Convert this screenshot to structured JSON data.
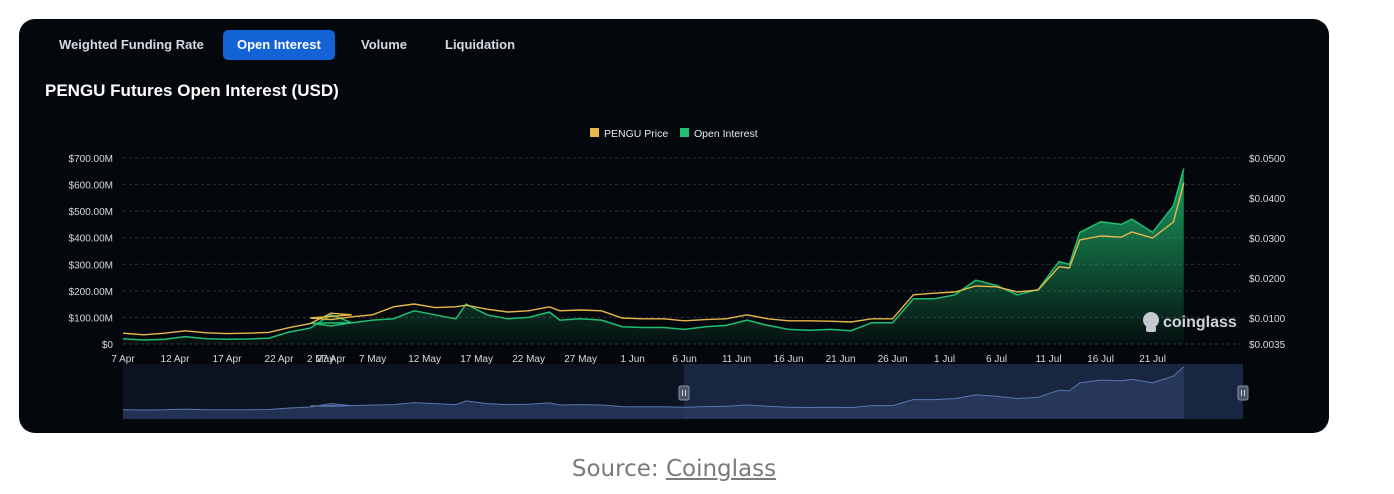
{
  "tabs": [
    {
      "label": "Weighted Funding Rate",
      "active": false
    },
    {
      "label": "Open Interest",
      "active": true
    },
    {
      "label": "Volume",
      "active": false
    },
    {
      "label": "Liquidation",
      "active": false
    }
  ],
  "title": "PENGU Futures Open Interest (USD)",
  "watermark": "coinglass",
  "caption": {
    "prefix": "Source: ",
    "link": "Coinglass"
  },
  "colors": {
    "background": "#04070b",
    "price": "#e9b84a",
    "open_interest": "#1fbf73",
    "active_tab": "#1463d6",
    "navigator": "#1b2a45"
  },
  "chart_data": {
    "type": "area",
    "legend": [
      "PENGU Price",
      "Open Interest"
    ],
    "legend_position": "top-center",
    "grid": true,
    "x_ticks": [
      "7 Apr",
      "12 Apr",
      "17 Apr",
      "22 Apr",
      "27 Apr",
      "2 May",
      "7 May",
      "12 May",
      "17 May",
      "22 May",
      "27 May",
      "1 Jun",
      "6 Jun",
      "11 Jun",
      "16 Jun",
      "21 Jun",
      "26 Jun",
      "1 Jul",
      "6 Jul",
      "11 Jul",
      "16 Jul",
      "21 Jul"
    ],
    "y_left": {
      "ticks": [
        "$0",
        "$100.00M",
        "$200.00M",
        "$300.00M",
        "$400.00M",
        "$500.00M",
        "$600.00M",
        "$700.00M"
      ],
      "range": [
        0,
        700
      ]
    },
    "y_right": {
      "ticks": [
        "$0.0035",
        "$0.0100",
        "$0.0200",
        "$0.0300",
        "$0.0400",
        "$0.0500"
      ]
    },
    "series": [
      {
        "name": "Open Interest",
        "unit": "USD millions",
        "points": [
          [
            "7 Apr",
            20
          ],
          [
            "9 Apr",
            15
          ],
          [
            "11 Apr",
            18
          ],
          [
            "13 Apr",
            28
          ],
          [
            "15 Apr",
            20
          ],
          [
            "17 Apr",
            18
          ],
          [
            "19 Apr",
            19
          ],
          [
            "21 Apr",
            22
          ],
          [
            "23 Apr",
            45
          ],
          [
            "25 Apr",
            60
          ],
          [
            "27 Apr",
            110
          ],
          [
            "29 Apr",
            80
          ],
          [
            "1 May",
            78
          ],
          [
            "3 May",
            68
          ],
          [
            "5 May",
            80
          ],
          [
            "7 May",
            90
          ],
          [
            "9 May",
            95
          ],
          [
            "11 May",
            125
          ],
          [
            "13 May",
            110
          ],
          [
            "15 May",
            95
          ],
          [
            "16 May",
            150
          ],
          [
            "18 May",
            110
          ],
          [
            "20 May",
            95
          ],
          [
            "22 May",
            100
          ],
          [
            "24 May",
            120
          ],
          [
            "25 May",
            90
          ],
          [
            "27 May",
            95
          ],
          [
            "29 May",
            90
          ],
          [
            "31 May",
            65
          ],
          [
            "2 Jun",
            62
          ],
          [
            "4 Jun",
            62
          ],
          [
            "6 Jun",
            55
          ],
          [
            "8 Jun",
            65
          ],
          [
            "10 Jun",
            70
          ],
          [
            "12 Jun",
            90
          ],
          [
            "14 Jun",
            70
          ],
          [
            "16 Jun",
            55
          ],
          [
            "18 Jun",
            52
          ],
          [
            "20 Jun",
            55
          ],
          [
            "22 Jun",
            50
          ],
          [
            "24 Jun",
            80
          ],
          [
            "26 Jun",
            80
          ],
          [
            "28 Jun",
            170
          ],
          [
            "30 Jun",
            170
          ],
          [
            "2 Jul",
            185
          ],
          [
            "4 Jul",
            240
          ],
          [
            "6 Jul",
            220
          ],
          [
            "8 Jul",
            185
          ],
          [
            "10 Jul",
            205
          ],
          [
            "12 Jul",
            310
          ],
          [
            "13 Jul",
            300
          ],
          [
            "14 Jul",
            420
          ],
          [
            "16 Jul",
            460
          ],
          [
            "18 Jul",
            450
          ],
          [
            "19 Jul",
            470
          ],
          [
            "21 Jul",
            420
          ],
          [
            "23 Jul",
            520
          ],
          [
            "24 Jul",
            660
          ]
        ]
      },
      {
        "name": "PENGU Price",
        "unit": "USD",
        "points": [
          [
            "7 Apr",
            0.0062
          ],
          [
            "9 Apr",
            0.0058
          ],
          [
            "11 Apr",
            0.0062
          ],
          [
            "13 Apr",
            0.0068
          ],
          [
            "15 Apr",
            0.0063
          ],
          [
            "17 Apr",
            0.0061
          ],
          [
            "19 Apr",
            0.0062
          ],
          [
            "21 Apr",
            0.0064
          ],
          [
            "23 Apr",
            0.0076
          ],
          [
            "25 Apr",
            0.0086
          ],
          [
            "27 Apr",
            0.0112
          ],
          [
            "29 Apr",
            0.0108
          ],
          [
            "1 May",
            0.01
          ],
          [
            "3 May",
            0.0096
          ],
          [
            "5 May",
            0.0103
          ],
          [
            "7 May",
            0.0108
          ],
          [
            "9 May",
            0.0128
          ],
          [
            "11 May",
            0.0135
          ],
          [
            "13 May",
            0.0126
          ],
          [
            "15 May",
            0.0128
          ],
          [
            "16 May",
            0.0132
          ],
          [
            "18 May",
            0.0122
          ],
          [
            "20 May",
            0.0115
          ],
          [
            "22 May",
            0.0118
          ],
          [
            "24 May",
            0.0128
          ],
          [
            "25 May",
            0.0118
          ],
          [
            "27 May",
            0.012
          ],
          [
            "29 May",
            0.0118
          ],
          [
            "31 May",
            0.01
          ],
          [
            "2 Jun",
            0.0098
          ],
          [
            "4 Jun",
            0.0098
          ],
          [
            "6 Jun",
            0.0093
          ],
          [
            "8 Jun",
            0.0096
          ],
          [
            "10 Jun",
            0.0098
          ],
          [
            "12 Jun",
            0.0108
          ],
          [
            "14 Jun",
            0.0098
          ],
          [
            "16 Jun",
            0.0093
          ],
          [
            "18 Jun",
            0.0093
          ],
          [
            "20 Jun",
            0.0092
          ],
          [
            "22 Jun",
            0.009
          ],
          [
            "24 Jun",
            0.0098
          ],
          [
            "26 Jun",
            0.0098
          ],
          [
            "28 Jun",
            0.0158
          ],
          [
            "30 Jun",
            0.0162
          ],
          [
            "2 Jul",
            0.0165
          ],
          [
            "4 Jul",
            0.018
          ],
          [
            "6 Jul",
            0.0178
          ],
          [
            "8 Jul",
            0.0165
          ],
          [
            "10 Jul",
            0.017
          ],
          [
            "12 Jul",
            0.0228
          ],
          [
            "13 Jul",
            0.0225
          ],
          [
            "14 Jul",
            0.0295
          ],
          [
            "16 Jul",
            0.0305
          ],
          [
            "18 Jul",
            0.0302
          ],
          [
            "19 Jul",
            0.0315
          ],
          [
            "21 Jul",
            0.03
          ],
          [
            "23 Jul",
            0.034
          ],
          [
            "24 Jul",
            0.0438
          ]
        ]
      }
    ]
  }
}
